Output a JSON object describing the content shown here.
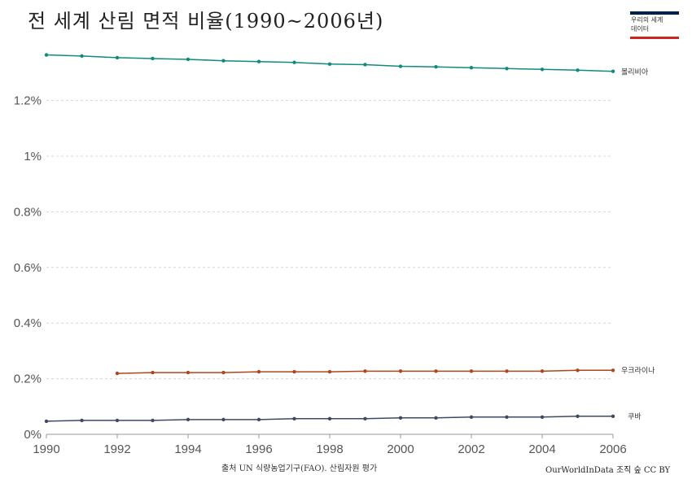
{
  "title": "전 세계 산림 면적 비율(1990~2006년)",
  "logo": {
    "line1": "우리의 세계",
    "line2": "데이터",
    "colors": {
      "top": "#002147",
      "bottom": "#ce261e"
    }
  },
  "source": "출처 UN 식량농업기구(FAO). 산림자원 평가",
  "credit": "OurWorldInData 조직 숲 CC BY",
  "chart_data": {
    "type": "line",
    "title": "전 세계 산림 면적 비율(1990~2006년)",
    "xlabel": "",
    "ylabel": "",
    "xlim": [
      1990,
      2006
    ],
    "ylim": [
      0,
      1.4
    ],
    "x_ticks": [
      "1990",
      "1992",
      "1994",
      "1996",
      "1998",
      "2000",
      "2002",
      "2004",
      "2006"
    ],
    "y_ticks": [
      "0%",
      "0.2%",
      "0.4%",
      "0.6%",
      "0.8%",
      "1%",
      "1.2%"
    ],
    "grid": "horizontal dashed",
    "series": [
      {
        "name": "볼리비아",
        "color": "#0f8b7c",
        "x": [
          1990,
          1991,
          1992,
          1993,
          1994,
          1995,
          1996,
          1997,
          1998,
          1999,
          2000,
          2001,
          2002,
          2003,
          2004,
          2005,
          2006
        ],
        "values": [
          1.364,
          1.36,
          1.354,
          1.351,
          1.348,
          1.343,
          1.34,
          1.337,
          1.331,
          1.329,
          1.323,
          1.321,
          1.318,
          1.315,
          1.312,
          1.309,
          1.305
        ]
      },
      {
        "name": "우크라이나",
        "color": "#b0461e",
        "x": [
          1992,
          1993,
          1994,
          1995,
          1996,
          1997,
          1998,
          1999,
          2000,
          2001,
          2002,
          2003,
          2004,
          2005,
          2006
        ],
        "values": [
          0.219,
          0.222,
          0.222,
          0.222,
          0.225,
          0.225,
          0.225,
          0.227,
          0.227,
          0.227,
          0.227,
          0.227,
          0.227,
          0.23,
          0.23
        ]
      },
      {
        "name": "쿠바",
        "color": "#3d4a63",
        "x": [
          1990,
          1991,
          1992,
          1993,
          1994,
          1995,
          1996,
          1997,
          1998,
          1999,
          2000,
          2001,
          2002,
          2003,
          2004,
          2005,
          2006
        ],
        "values": [
          0.047,
          0.05,
          0.05,
          0.05,
          0.053,
          0.053,
          0.053,
          0.056,
          0.056,
          0.056,
          0.059,
          0.059,
          0.062,
          0.062,
          0.062,
          0.065,
          0.065
        ]
      }
    ]
  }
}
